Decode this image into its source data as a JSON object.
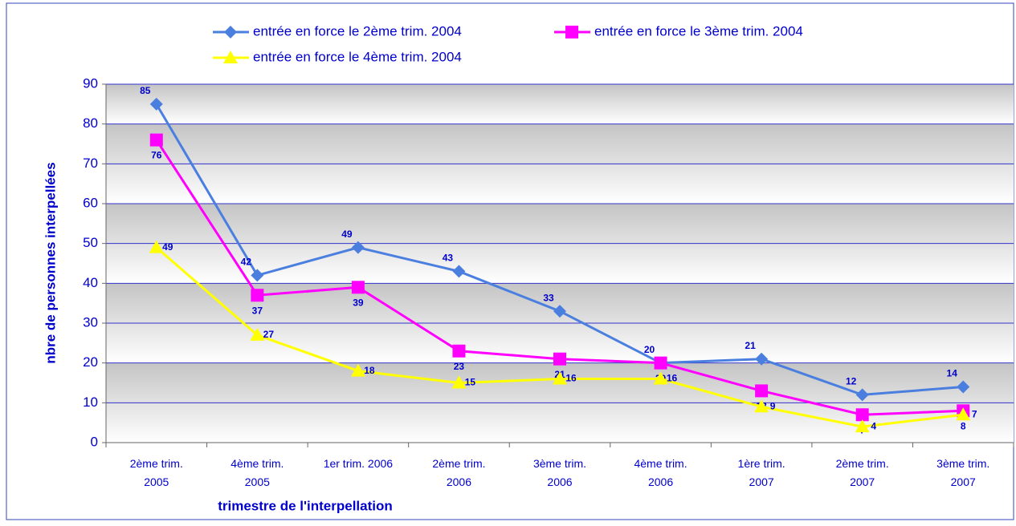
{
  "chart_data": {
    "type": "line",
    "x_label": "trimestre de l'interpellation",
    "y_label": "nbre de personnes interpellées",
    "categories": [
      "2ème trim.\n2005",
      "4ème trim.\n2005",
      "1er trim. 2006",
      "2ème trim.\n2006",
      "3ème trim.\n2006",
      "4ème trim.\n2006",
      "1ère trim.\n2007",
      "2ème trim.\n2007",
      "3ème trim.\n2007"
    ],
    "series": [
      {
        "name": "entrée en force le 2ème trim. 2004",
        "color": "#4a7fe0",
        "marker": "diamond",
        "values": [
          85,
          42,
          49,
          43,
          33,
          20,
          21,
          12,
          14
        ]
      },
      {
        "name": "entrée en force le 3ème trim. 2004",
        "color": "#ff00ff",
        "marker": "square",
        "values": [
          76,
          37,
          39,
          23,
          21,
          20,
          13,
          7,
          8
        ]
      },
      {
        "name": "entrée en force le 4ème trim. 2004",
        "color": "#ffff00",
        "marker": "triangle",
        "values": [
          49,
          27,
          18,
          15,
          16,
          16,
          9,
          4,
          7
        ]
      }
    ],
    "ylim": [
      0,
      90
    ],
    "yticks": [
      0,
      10,
      20,
      30,
      40,
      50,
      60,
      70,
      80,
      90
    ],
    "grid": true
  }
}
